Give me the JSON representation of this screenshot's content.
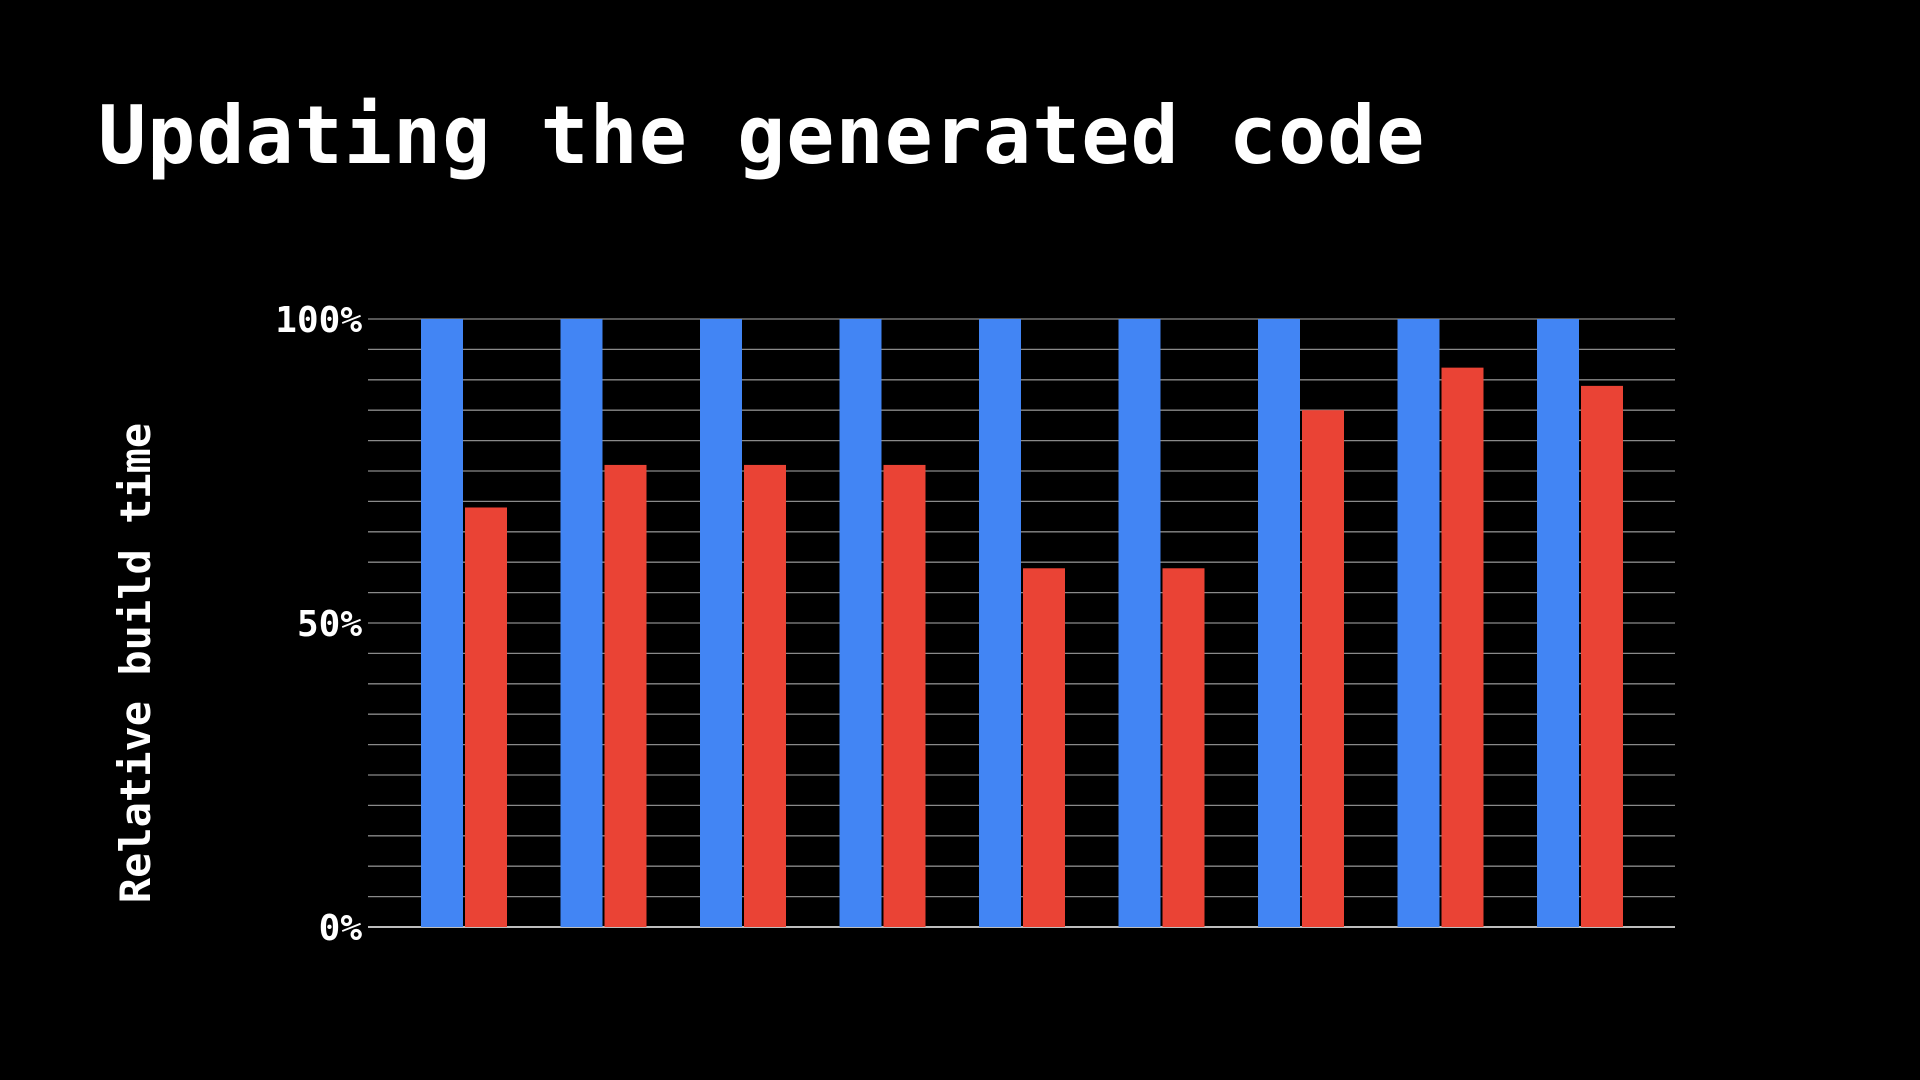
{
  "slide": {
    "title": "Updating the generated code"
  },
  "chart_data": {
    "type": "bar",
    "title": "Updating the generated code",
    "xlabel": "",
    "ylabel": "Relative build time",
    "ylim": [
      0,
      100
    ],
    "y_unit": "%",
    "y_tick_labels": [
      "0%",
      "50%",
      "100%"
    ],
    "y_tick_values": [
      0,
      50,
      100
    ],
    "grid": true,
    "grid_step": 5,
    "categories": [
      "",
      "",
      "",
      "",
      "",
      "",
      "",
      "",
      ""
    ],
    "series": [
      {
        "color": "#4285F4",
        "values": [
          100,
          100,
          100,
          100,
          100,
          100,
          100,
          100,
          100
        ]
      },
      {
        "color": "#EA4335",
        "values": [
          69,
          76,
          76,
          76,
          59,
          59,
          85,
          92,
          89
        ]
      }
    ]
  }
}
